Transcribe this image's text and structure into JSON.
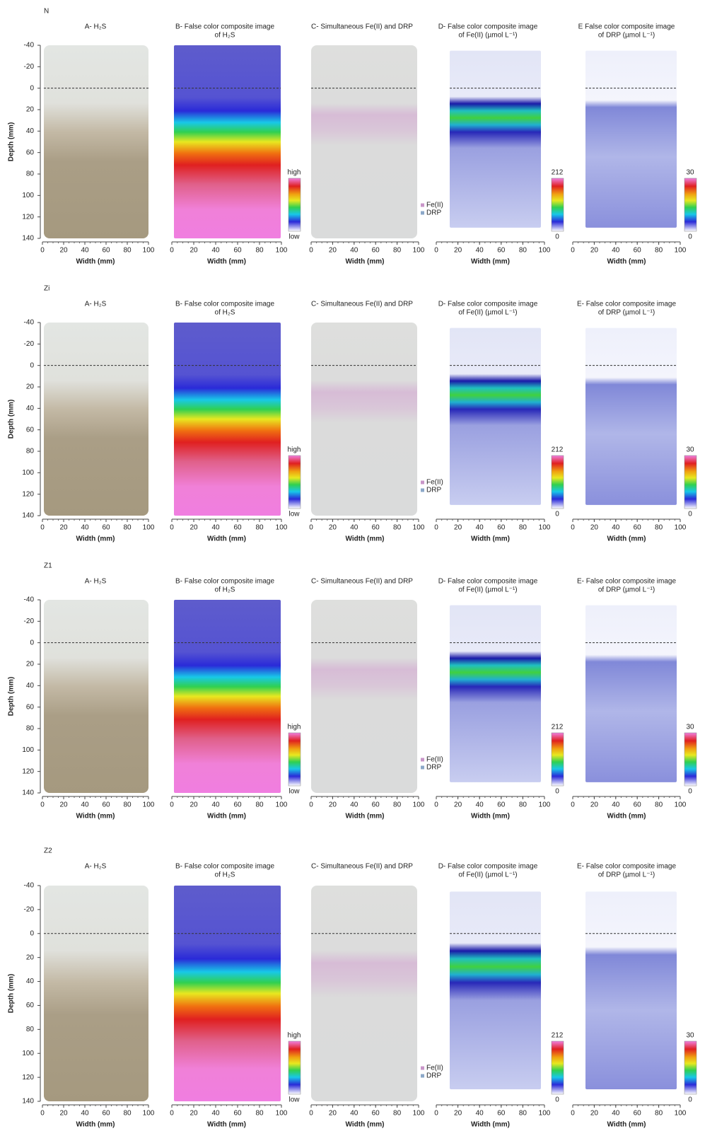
{
  "rows": [
    {
      "label": "N",
      "titles": [
        [
          "A- H₂S"
        ],
        [
          "B- False color composite image",
          "of H₂S"
        ],
        [
          "C- Simultaneous Fe(II) and DRP"
        ],
        [
          "D- False color composite image",
          "of Fe(II) (µmol L⁻¹)"
        ],
        [
          "E False color composite image",
          "of DRP (µmol L⁻¹)"
        ]
      ]
    },
    {
      "label": "Zi",
      "titles": [
        [
          "A- H₂S"
        ],
        [
          "B- False color composite image",
          "of H₂S"
        ],
        [
          "C- Simultaneous Fe(II) and DRP"
        ],
        [
          "D- False color composite image",
          "of Fe(II) (µmol L⁻¹)"
        ],
        [
          "E- False color composite image",
          "of DRP (µmol L⁻¹)"
        ]
      ]
    },
    {
      "label": "Z1",
      "titles": [
        [
          "A- H₂S"
        ],
        [
          "B- False color composite image",
          "of H₂S"
        ],
        [
          "C- Simultaneous Fe(II) and DRP"
        ],
        [
          "D- False color composite image",
          "of Fe(II) (µmol L⁻¹)"
        ],
        [
          "E- False color composite image",
          "of DRP (µmol L⁻¹)"
        ]
      ]
    },
    {
      "label": "Z2",
      "titles": [
        [
          "A- H₂S"
        ],
        [
          "B- False color composite image",
          "of H₂S"
        ],
        [
          "C- Simultaneous Fe(II) and DRP"
        ],
        [
          "D- False color composite image",
          "of Fe(II) (µmol L⁻¹)"
        ],
        [
          "E- False color composite image",
          "of DRP (µmol L⁻¹)"
        ]
      ]
    }
  ],
  "ylabel": "Depth (mm)",
  "xlabel": "Width (mm)",
  "ylim": [
    -40,
    140
  ],
  "yticks": [
    -40,
    -20,
    0,
    20,
    40,
    60,
    80,
    100,
    120,
    140
  ],
  "xlim": [
    0,
    100
  ],
  "xticks": [
    0,
    20,
    40,
    60,
    80,
    100
  ],
  "h2s_scale": {
    "top": "high",
    "bottom": "low"
  },
  "fe_scale": {
    "top": 212,
    "bottom": 0
  },
  "drp_scale": {
    "top": 30,
    "bottom": 0
  },
  "legend": [
    "Fe(II)",
    "DRP"
  ]
}
